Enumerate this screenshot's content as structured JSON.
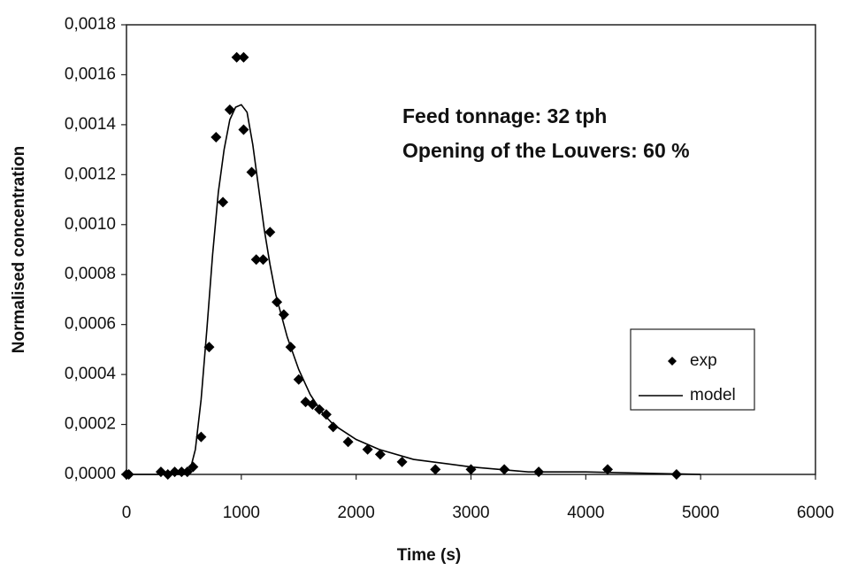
{
  "chart_data": {
    "type": "scatter",
    "xlabel": "Time (s)",
    "ylabel": "Normalised concentration",
    "annotations": [
      "Feed tonnage: 32 tph",
      "Opening of the Louvers: 60 %"
    ],
    "xlim": [
      0,
      6000
    ],
    "xticks": [
      0,
      1000,
      2000,
      3000,
      4000,
      5000,
      6000
    ],
    "ylim": [
      0,
      0.0018
    ],
    "yticks": [
      {
        "value": 0,
        "label": "0,0000"
      },
      {
        "value": 0.0002,
        "label": "0,0002"
      },
      {
        "value": 0.0004,
        "label": "0,0004"
      },
      {
        "value": 0.0006,
        "label": "0,0006"
      },
      {
        "value": 0.0008,
        "label": "0,0008"
      },
      {
        "value": 0.001,
        "label": "0,0010"
      },
      {
        "value": 0.0012,
        "label": "0,0012"
      },
      {
        "value": 0.0014,
        "label": "0,0014"
      },
      {
        "value": 0.0016,
        "label": "0,0016"
      },
      {
        "value": 0.0018,
        "label": "0,0018"
      }
    ],
    "legend": "right",
    "series": [
      {
        "name": "exp",
        "color": "#000000",
        "style": "marker",
        "x": [
          0,
          20,
          300,
          360,
          420,
          480,
          530,
          580,
          650,
          720,
          780,
          840,
          900,
          960,
          1020,
          1020,
          1090,
          1130,
          1190,
          1250,
          1310,
          1370,
          1430,
          1500,
          1560,
          1620,
          1680,
          1740,
          1800,
          1930,
          2100,
          2210,
          2400,
          2690,
          3000,
          3290,
          3590,
          4190,
          4790
        ],
        "values": [
          0,
          0,
          1e-05,
          0,
          1e-05,
          1e-05,
          1e-05,
          3e-05,
          0.00015,
          0.00051,
          0.00135,
          0.00109,
          0.00146,
          0.00167,
          0.00167,
          0.00138,
          0.00121,
          0.00086,
          0.00086,
          0.00097,
          0.00069,
          0.00064,
          0.00051,
          0.00038,
          0.00029,
          0.00028,
          0.00026,
          0.00024,
          0.00019,
          0.00013,
          0.0001,
          8e-05,
          5e-05,
          2e-05,
          2e-05,
          2e-05,
          1e-05,
          2e-05,
          0
        ]
      },
      {
        "name": "model",
        "color": "#000000",
        "style": "line",
        "x": [
          0,
          500,
          550,
          600,
          650,
          700,
          750,
          800,
          850,
          900,
          950,
          1000,
          1050,
          1100,
          1150,
          1200,
          1250,
          1300,
          1400,
          1500,
          1600,
          1700,
          1800,
          2000,
          2200,
          2500,
          3000,
          3500,
          4000,
          5000
        ],
        "values": [
          0,
          0,
          1e-05,
          0.0001,
          0.0003,
          0.00058,
          0.00088,
          0.00113,
          0.0013,
          0.00142,
          0.00147,
          0.00148,
          0.00145,
          0.00132,
          0.00115,
          0.00098,
          0.00084,
          0.00072,
          0.00055,
          0.00042,
          0.00032,
          0.00025,
          0.0002,
          0.00014,
          0.0001,
          6e-05,
          3e-05,
          1e-05,
          1e-05,
          0
        ]
      }
    ]
  }
}
